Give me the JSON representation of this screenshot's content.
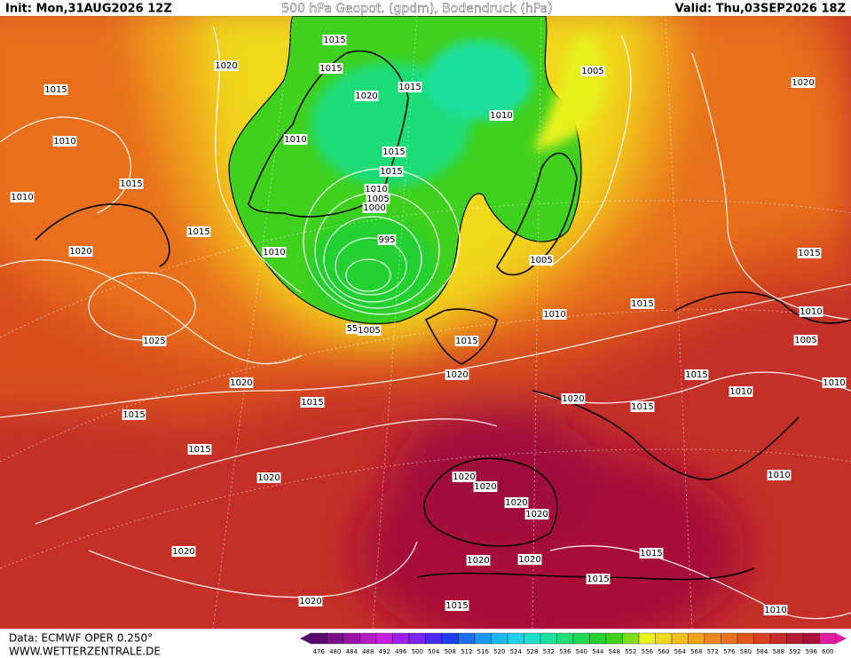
{
  "header": {
    "init": "Init: Mon,31AUG2026 12Z",
    "title": "500 hPa Geopot. (gpdm), Bodendruck (hPa)",
    "valid": "Valid: Thu,03SEP2026 18Z"
  },
  "isobar_labels": [
    "1015",
    "1020",
    "1015",
    "1015",
    "1015",
    "1020",
    "1005",
    "1020",
    "1010",
    "1010",
    "1010",
    "1015",
    "1015",
    "1015",
    "1010",
    "1010",
    "1005",
    "1000",
    "1015",
    "995",
    "1020",
    "1010",
    "1005",
    "1015",
    "1010",
    "1015",
    "1010",
    "1005",
    "55",
    "1025",
    "1015",
    "1005",
    "1020",
    "1015",
    "1020",
    "1010",
    "1010",
    "1020",
    "1015",
    "1015",
    "1015",
    "1015",
    "1020",
    "1020",
    "1020",
    "1010",
    "1020",
    "1020",
    "1020",
    "1015",
    "1020",
    "1020",
    "1015",
    "1020",
    "1015",
    "1010"
  ],
  "colorbar": {
    "ticks": [
      476,
      480,
      484,
      488,
      492,
      496,
      500,
      504,
      508,
      512,
      516,
      520,
      524,
      528,
      532,
      536,
      540,
      544,
      548,
      552,
      556,
      560,
      564,
      568,
      572,
      576,
      580,
      584,
      588,
      592,
      596,
      600
    ],
    "colors": [
      "#5a0a6e",
      "#7a0f8a",
      "#9a14a8",
      "#b41ac0",
      "#c81ee0",
      "#a020f0",
      "#7a24f0",
      "#4a2af0",
      "#2040f0",
      "#1e6ef0",
      "#1e96f0",
      "#1eb8f0",
      "#1ed2e8",
      "#1ee0c8",
      "#1ee0a0",
      "#1edc78",
      "#1ed850",
      "#22d030",
      "#40d01e",
      "#80dc1e",
      "#e8f01e",
      "#f0d81e",
      "#f0be1e",
      "#f0a21e",
      "#ec881e",
      "#e8701e",
      "#e0581e",
      "#d84020",
      "#c82c28",
      "#b81a30",
      "#a80e38",
      "#e01ea0"
    ]
  },
  "footer": {
    "data": "Data: ECMWF OPER 0.250°",
    "site": "WWW.WETTERZENTRALE.DE"
  }
}
